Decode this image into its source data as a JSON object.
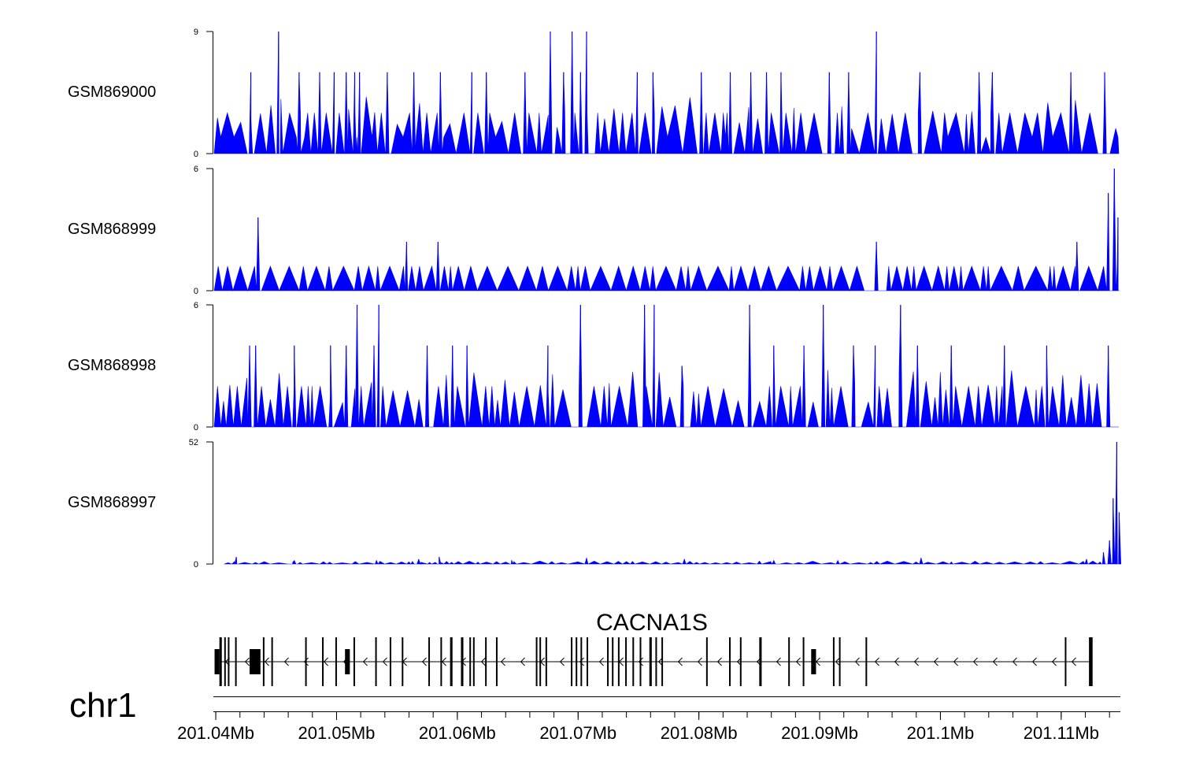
{
  "chart_data": {
    "type": "area",
    "title": "",
    "x_unit": "Mb",
    "x_range": [
      201.0398,
      201.1149
    ],
    "x_ticks": [
      {
        "value": 201.04,
        "label": "201.04Mb"
      },
      {
        "value": 201.05,
        "label": "201.05Mb"
      },
      {
        "value": 201.06,
        "label": "201.06Mb"
      },
      {
        "value": 201.07,
        "label": "201.07Mb"
      },
      {
        "value": 201.08,
        "label": "201.08Mb"
      },
      {
        "value": 201.09,
        "label": "201.09Mb"
      },
      {
        "value": 201.1,
        "label": "201.1Mb"
      },
      {
        "value": 201.11,
        "label": "201.11Mb"
      }
    ],
    "chromosome": "chr1",
    "color": "#0000ff",
    "series": [
      {
        "name": "GSM869000",
        "ylim": [
          0,
          9
        ],
        "ytick_labels": [
          "9",
          "0"
        ],
        "baseline": 3,
        "peaks": [
          [
            201.0429,
            6
          ],
          [
            201.0452,
            9
          ],
          [
            201.0469,
            6
          ],
          [
            201.0486,
            6
          ],
          [
            201.0498,
            6
          ],
          [
            201.0508,
            6
          ],
          [
            201.0515,
            6
          ],
          [
            201.0519,
            6
          ],
          [
            201.0542,
            6
          ],
          [
            201.0564,
            6
          ],
          [
            201.0586,
            6
          ],
          [
            201.0612,
            6
          ],
          [
            201.0624,
            6
          ],
          [
            201.0656,
            6
          ],
          [
            201.0677,
            9
          ],
          [
            201.0688,
            6
          ],
          [
            201.0695,
            9
          ],
          [
            201.0702,
            6
          ],
          [
            201.0707,
            9
          ],
          [
            201.0749,
            6
          ],
          [
            201.0762,
            6
          ],
          [
            201.0802,
            6
          ],
          [
            201.0826,
            6
          ],
          [
            201.0843,
            6
          ],
          [
            201.0856,
            6
          ],
          [
            201.0868,
            6
          ],
          [
            201.0908,
            6
          ],
          [
            201.0924,
            6
          ],
          [
            201.0947,
            9
          ],
          [
            201.0983,
            6
          ],
          [
            201.1032,
            6
          ],
          [
            201.1043,
            6
          ],
          [
            201.1108,
            6
          ],
          [
            201.1136,
            6
          ]
        ]
      },
      {
        "name": "GSM868999",
        "ylim": [
          0,
          6
        ],
        "ytick_labels": [
          "6",
          "0"
        ],
        "baseline": 1.2,
        "peaks": [
          [
            201.0435,
            3.6
          ],
          [
            201.0558,
            2.4
          ],
          [
            201.0584,
            2.4
          ],
          [
            201.0947,
            2.4
          ],
          [
            201.1113,
            2.4
          ],
          [
            201.1139,
            4.8
          ],
          [
            201.1144,
            6
          ],
          [
            201.1147,
            3.6
          ]
        ]
      },
      {
        "name": "GSM868998",
        "ylim": [
          0,
          6
        ],
        "ytick_labels": [
          "6",
          "0"
        ],
        "baseline": 2,
        "peaks": [
          [
            201.0428,
            4
          ],
          [
            201.0433,
            4
          ],
          [
            201.0465,
            4
          ],
          [
            201.0495,
            4
          ],
          [
            201.0508,
            4
          ],
          [
            201.0517,
            6
          ],
          [
            201.0531,
            4
          ],
          [
            201.0535,
            6
          ],
          [
            201.0575,
            4
          ],
          [
            201.0596,
            4
          ],
          [
            201.0608,
            4
          ],
          [
            201.0675,
            4
          ],
          [
            201.0702,
            6
          ],
          [
            201.0755,
            6
          ],
          [
            201.0763,
            6
          ],
          [
            201.0786,
            3
          ],
          [
            201.0842,
            6
          ],
          [
            201.0862,
            4
          ],
          [
            201.0887,
            4
          ],
          [
            201.0903,
            6
          ],
          [
            201.0928,
            4
          ],
          [
            201.0946,
            4
          ],
          [
            201.0967,
            6
          ],
          [
            201.0981,
            4
          ],
          [
            201.1009,
            4
          ],
          [
            201.1053,
            4
          ],
          [
            201.1088,
            4
          ],
          [
            201.1139,
            4
          ]
        ]
      },
      {
        "name": "GSM868997",
        "ylim": [
          0,
          52
        ],
        "ytick_labels": [
          "52",
          "0"
        ],
        "baseline": 1,
        "peaks": [
          [
            201.0417,
            3
          ],
          [
            201.0465,
            1.5
          ],
          [
            201.0533,
            1.5
          ],
          [
            201.0568,
            2
          ],
          [
            201.0585,
            3
          ],
          [
            201.0645,
            1.5
          ],
          [
            201.0707,
            2.5
          ],
          [
            201.0788,
            2
          ],
          [
            201.0862,
            1.5
          ],
          [
            201.0915,
            1.5
          ],
          [
            201.0984,
            2.5
          ],
          [
            201.1121,
            2
          ],
          [
            201.1135,
            5
          ],
          [
            201.114,
            10
          ],
          [
            201.1143,
            28
          ],
          [
            201.1146,
            52
          ],
          [
            201.1148,
            22
          ]
        ]
      }
    ],
    "gene": {
      "name": "CACNA1S",
      "strand": "-",
      "start": 201.0399,
      "end": 201.1126,
      "exons": [
        [
          201.0399,
          201.0403
        ],
        [
          201.0403,
          201.0405
        ],
        [
          201.0407,
          201.0408
        ],
        [
          201.041,
          201.0411
        ],
        [
          201.0416,
          201.0417
        ],
        [
          201.0428,
          201.0437
        ],
        [
          201.0439,
          201.044
        ],
        [
          201.0446,
          201.0447
        ],
        [
          201.0474,
          201.0475
        ],
        [
          201.0488,
          201.0489
        ],
        [
          201.0499,
          201.05
        ],
        [
          201.0507,
          201.0511
        ],
        [
          201.0514,
          201.0515
        ],
        [
          201.0532,
          201.0533
        ],
        [
          201.0544,
          201.0545
        ],
        [
          201.0554,
          201.0555
        ],
        [
          201.0576,
          201.0577
        ],
        [
          201.0586,
          201.0587
        ],
        [
          201.0594,
          201.0596
        ],
        [
          201.0603,
          201.0605
        ],
        [
          201.061,
          201.0611
        ],
        [
          201.0613,
          201.0614
        ],
        [
          201.0623,
          201.0624
        ],
        [
          201.0632,
          201.0633
        ],
        [
          201.0665,
          201.0666
        ],
        [
          201.0668,
          201.0669
        ],
        [
          201.0673,
          201.0674
        ],
        [
          201.0694,
          201.0695
        ],
        [
          201.0698,
          201.0699
        ],
        [
          201.0702,
          201.0703
        ],
        [
          201.0707,
          201.0708
        ],
        [
          201.0724,
          201.0725
        ],
        [
          201.0728,
          201.0729
        ],
        [
          201.0733,
          201.0734
        ],
        [
          201.0739,
          201.074
        ],
        [
          201.0745,
          201.0746
        ],
        [
          201.0751,
          201.0752
        ],
        [
          201.0759,
          201.0761
        ],
        [
          201.0764,
          201.0765
        ],
        [
          201.0769,
          201.077
        ],
        [
          201.0806,
          201.0807
        ],
        [
          201.0825,
          201.0826
        ],
        [
          201.0834,
          201.0835
        ],
        [
          201.085,
          201.0852
        ],
        [
          201.0874,
          201.0875
        ],
        [
          201.0886,
          201.0887
        ],
        [
          201.0893,
          201.0897
        ],
        [
          201.0911,
          201.0912
        ],
        [
          201.0916,
          201.0917
        ],
        [
          201.0938,
          201.0939
        ],
        [
          201.1103,
          201.1104
        ],
        [
          201.1123,
          201.1124
        ],
        [
          201.1124,
          201.1126
        ]
      ]
    }
  }
}
